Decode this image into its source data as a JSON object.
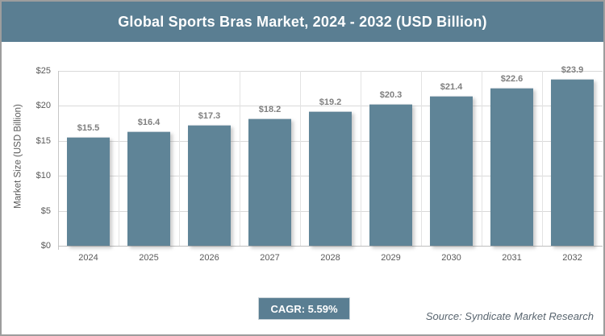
{
  "header": {
    "title": "Global Sports Bras Market, 2024 - 2032 (USD Billion)"
  },
  "chart_data": {
    "type": "bar",
    "title": "Global Sports Bras Market, 2024 - 2032 (USD Billion)",
    "categories": [
      "2024",
      "2025",
      "2026",
      "2027",
      "2028",
      "2029",
      "2030",
      "2031",
      "2032"
    ],
    "values": [
      15.5,
      16.4,
      17.3,
      18.2,
      19.2,
      20.3,
      21.4,
      22.6,
      23.9
    ],
    "value_labels": [
      "$15.5",
      "$16.4",
      "$17.3",
      "$18.2",
      "$19.2",
      "$20.3",
      "$21.4",
      "$22.6",
      "$23.9"
    ],
    "xlabel": "",
    "ylabel": "Market Size (USD Billion)",
    "ylim": [
      0,
      25
    ],
    "ytick_step": 5,
    "ytick_labels": [
      "$0",
      "$5",
      "$10",
      "$15",
      "$20",
      "$25"
    ],
    "grid": true,
    "legend": false,
    "bar_color": "#5f8497"
  },
  "footer": {
    "cagr": "CAGR: 5.59%",
    "source": "Source: Syndicate Market Research"
  },
  "colors": {
    "title_bar_bg": "#5a7e92",
    "bar_fill": "#5f8497",
    "gridline": "#d9d9d9",
    "axis": "#bfbfbf",
    "value_label": "#7f7f7f",
    "tick_label": "#595959",
    "cagr_bg": "#5a7e92",
    "source_text": "#5a6670",
    "frame_border": "#9d9d9d",
    "title_text": "#ffffff"
  }
}
